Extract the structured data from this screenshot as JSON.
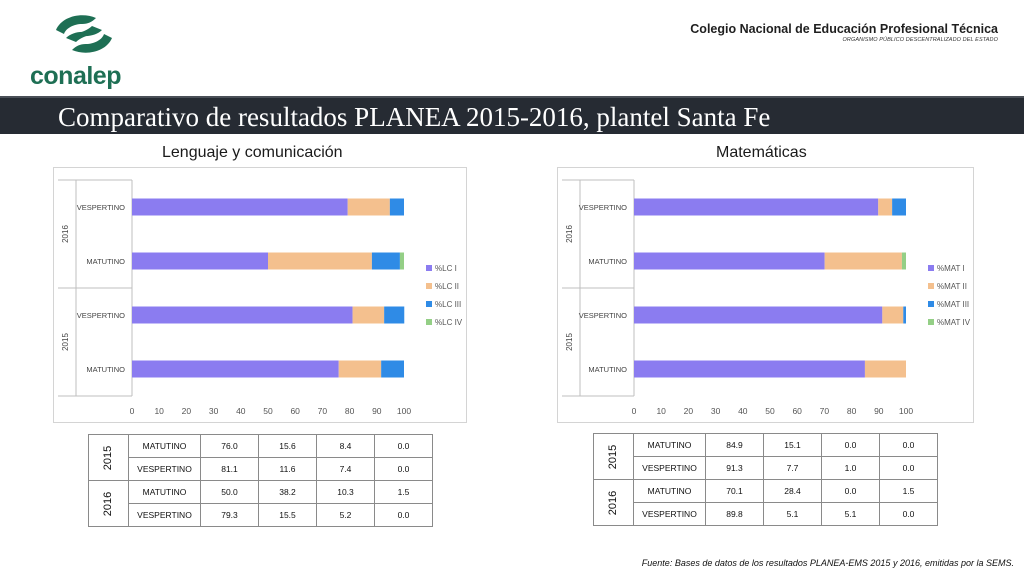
{
  "header": {
    "logo_text": "conalep",
    "institution_name": "Colegio Nacional de Educación Profesional Técnica",
    "institution_subtitle": "ORGANISMO PÚBLICO DESCENTRALIZADO DEL ESTADO",
    "title": "Comparativo de resultados PLANEA 2015-2016, plantel Santa Fe"
  },
  "colors": {
    "level1": "#8b7cf0",
    "level2": "#f4c08e",
    "level3": "#2f8be6",
    "level4": "#94cf86",
    "banner": "#262b33",
    "brand_green": "#1e6f54"
  },
  "chart_data": [
    {
      "type": "bar",
      "orientation": "horizontal",
      "stacked": true,
      "title": "Lenguaje y comunicación",
      "groups": [
        {
          "year": "2016",
          "categories": [
            "VESPERTINO",
            "MATUTINO"
          ]
        },
        {
          "year": "2015",
          "categories": [
            "VESPERTINO",
            "MATUTINO"
          ]
        }
      ],
      "rows": [
        {
          "year": "2016",
          "shift": "VESPERTINO",
          "values": [
            79.3,
            15.5,
            5.2,
            0.0
          ]
        },
        {
          "year": "2016",
          "shift": "MATUTINO",
          "values": [
            50.0,
            38.2,
            10.3,
            1.5
          ]
        },
        {
          "year": "2015",
          "shift": "VESPERTINO",
          "values": [
            81.1,
            11.6,
            7.4,
            0.0
          ]
        },
        {
          "year": "2015",
          "shift": "MATUTINO",
          "values": [
            76.0,
            15.6,
            8.4,
            0.0
          ]
        }
      ],
      "series": [
        {
          "name": "%LC I"
        },
        {
          "name": "%LC II"
        },
        {
          "name": "%LC III"
        },
        {
          "name": "%LC IV"
        }
      ],
      "xlim": [
        0,
        100
      ],
      "xticks": [
        "0",
        "10",
        "20",
        "30",
        "40",
        "50",
        "60",
        "70",
        "80",
        "90",
        "100"
      ],
      "legend": "right",
      "grid": false
    },
    {
      "type": "bar",
      "orientation": "horizontal",
      "stacked": true,
      "title": "Matemáticas",
      "groups": [
        {
          "year": "2016",
          "categories": [
            "VESPERTINO",
            "MATUTINO"
          ]
        },
        {
          "year": "2015",
          "categories": [
            "VESPERTINO",
            "MATUTINO"
          ]
        }
      ],
      "rows": [
        {
          "year": "2016",
          "shift": "VESPERTINO",
          "values": [
            89.8,
            5.1,
            5.1,
            0.0
          ]
        },
        {
          "year": "2016",
          "shift": "MATUTINO",
          "values": [
            70.1,
            28.4,
            0.0,
            1.5
          ]
        },
        {
          "year": "2015",
          "shift": "VESPERTINO",
          "values": [
            91.3,
            7.7,
            1.0,
            0.0
          ]
        },
        {
          "year": "2015",
          "shift": "MATUTINO",
          "values": [
            84.9,
            15.1,
            0.0,
            0.0
          ]
        }
      ],
      "series": [
        {
          "name": "%MAT I"
        },
        {
          "name": "%MAT II"
        },
        {
          "name": "%MAT III"
        },
        {
          "name": "%MAT IV"
        }
      ],
      "xlim": [
        0,
        100
      ],
      "xticks": [
        "0",
        "10",
        "20",
        "30",
        "40",
        "50",
        "60",
        "70",
        "80",
        "90",
        "100"
      ],
      "legend": "right",
      "grid": false
    }
  ],
  "tables": [
    {
      "rows": [
        {
          "year": "2015",
          "shift": "MATUTINO",
          "values": [
            "76.0",
            "15.6",
            "8.4",
            "0.0"
          ]
        },
        {
          "year": "",
          "shift": "VESPERTINO",
          "values": [
            "81.1",
            "11.6",
            "7.4",
            "0.0"
          ]
        },
        {
          "year": "2016",
          "shift": "MATUTINO",
          "values": [
            "50.0",
            "38.2",
            "10.3",
            "1.5"
          ]
        },
        {
          "year": "",
          "shift": "VESPERTINO",
          "values": [
            "79.3",
            "15.5",
            "5.2",
            "0.0"
          ]
        }
      ]
    },
    {
      "rows": [
        {
          "year": "2015",
          "shift": "MATUTINO",
          "values": [
            "84.9",
            "15.1",
            "0.0",
            "0.0"
          ]
        },
        {
          "year": "",
          "shift": "VESPERTINO",
          "values": [
            "91.3",
            "7.7",
            "1.0",
            "0.0"
          ]
        },
        {
          "year": "2016",
          "shift": "MATUTINO",
          "values": [
            "70.1",
            "28.4",
            "0.0",
            "1.5"
          ]
        },
        {
          "year": "",
          "shift": "VESPERTINO",
          "values": [
            "89.8",
            "5.1",
            "5.1",
            "0.0"
          ]
        }
      ]
    }
  ],
  "footer": {
    "source": "Fuente: Bases de datos de los resultados PLANEA-EMS 2015 y 2016, emitidas por la SEMS."
  }
}
